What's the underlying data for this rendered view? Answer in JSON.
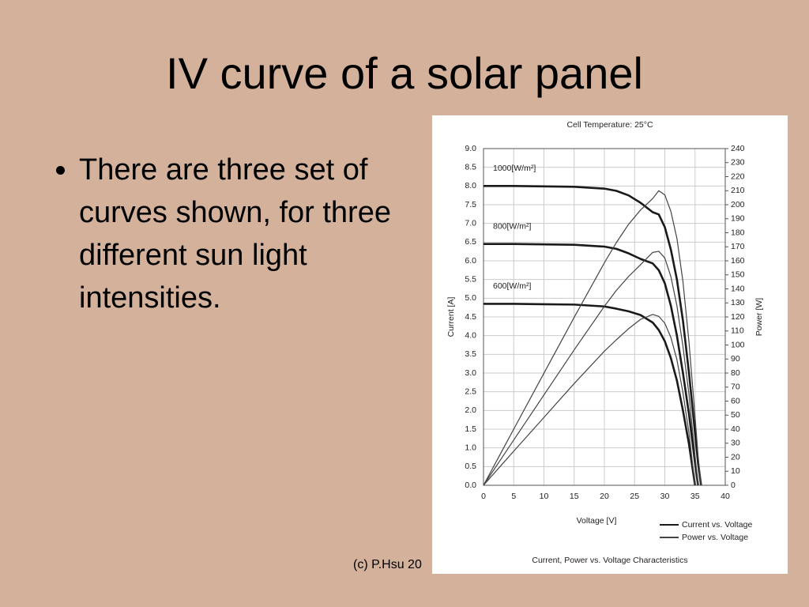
{
  "title": "IV curve of a solar panel",
  "bullets": [
    "There are three set of curves shown, for three different sun light intensities."
  ],
  "footer": "(c) P.Hsu 20",
  "chart_data": {
    "type": "line",
    "title": "Cell Temperature:  25°C",
    "caption": "Current, Power vs. Voltage Characteristics",
    "xlabel": "Voltage [V]",
    "ylabel": "Current [A]",
    "y2label": "Power [W]",
    "grid": true,
    "legend": "lower right",
    "xlim": [
      0,
      40
    ],
    "xticks": [
      0,
      5,
      10,
      15,
      20,
      25,
      30,
      35,
      40
    ],
    "ylim": [
      0,
      9
    ],
    "yticks": [
      {
        "value": 0,
        "label": "0.0"
      },
      0.5,
      {
        "value": 1,
        "label": "1.0"
      },
      1.5,
      {
        "value": 2,
        "label": "2.0"
      },
      2.5,
      {
        "value": 3,
        "label": "3.0"
      },
      3.5,
      {
        "value": 4,
        "label": "4.0"
      },
      4.5,
      {
        "value": 5,
        "label": "5.0"
      },
      5.5,
      {
        "value": 6,
        "label": "6.0"
      },
      6.5,
      {
        "value": 7,
        "label": "7.0"
      },
      7.5,
      {
        "value": 8,
        "label": "8.0"
      },
      8.5,
      {
        "value": 9,
        "label": "9.0"
      }
    ],
    "y2lim": [
      0,
      240
    ],
    "y2ticks": [
      0,
      10,
      20,
      30,
      40,
      50,
      60,
      70,
      80,
      90,
      100,
      110,
      120,
      130,
      140,
      150,
      160,
      170,
      180,
      190,
      200,
      210,
      220,
      230,
      240
    ],
    "x": [
      0,
      5,
      10,
      15,
      20,
      22,
      24,
      26,
      28,
      29,
      30,
      31,
      32,
      33,
      34,
      35,
      35.5,
      36,
      36.5
    ],
    "series": [
      {
        "name": "Current vs. Voltage",
        "color": "#1a1a1a",
        "curves": [
          {
            "label": "1000[W/m²]",
            "values": [
              8.0,
              8.0,
              7.99,
              7.98,
              7.93,
              7.87,
              7.75,
              7.55,
              7.3,
              7.24,
              6.9,
              6.3,
              5.5,
              4.4,
              3.0,
              1.4,
              0.6,
              0,
              null
            ]
          },
          {
            "label": "800[W/m²]",
            "values": [
              6.45,
              6.45,
              6.44,
              6.43,
              6.38,
              6.32,
              6.2,
              6.05,
              5.93,
              5.75,
              5.4,
              4.8,
              4.0,
              3.0,
              1.9,
              0.6,
              0,
              null,
              null
            ]
          },
          {
            "label": "600[W/m²]",
            "values": [
              4.85,
              4.85,
              4.84,
              4.83,
              4.78,
              4.72,
              4.65,
              4.55,
              4.35,
              4.15,
              3.85,
              3.4,
              2.8,
              2.0,
              1.1,
              0,
              null,
              null,
              null
            ]
          }
        ]
      },
      {
        "name": "Power vs. Voltage",
        "color": "#444444",
        "axis": "y2",
        "curves": [
          {
            "values": [
              0,
              40,
              79.9,
              119.7,
              158.6,
              173.1,
              186,
              196.3,
              204.4,
              210,
              207,
              195.3,
              176,
              145.2,
              102,
              49,
              21.3,
              0,
              null
            ]
          },
          {
            "values": [
              0,
              32.3,
              64.4,
              96.5,
              127.6,
              139,
              148.8,
              157.3,
              166,
              166.8,
              162,
              148.8,
              128,
              99,
              64.6,
              21,
              0,
              null,
              null
            ]
          },
          {
            "values": [
              0,
              24.3,
              48.4,
              72.5,
              95.6,
              103.8,
              111.6,
              118.3,
              121.8,
              120.4,
              115.5,
              105.4,
              89.6,
              66,
              37.4,
              0,
              null,
              null,
              null
            ]
          }
        ]
      }
    ]
  }
}
